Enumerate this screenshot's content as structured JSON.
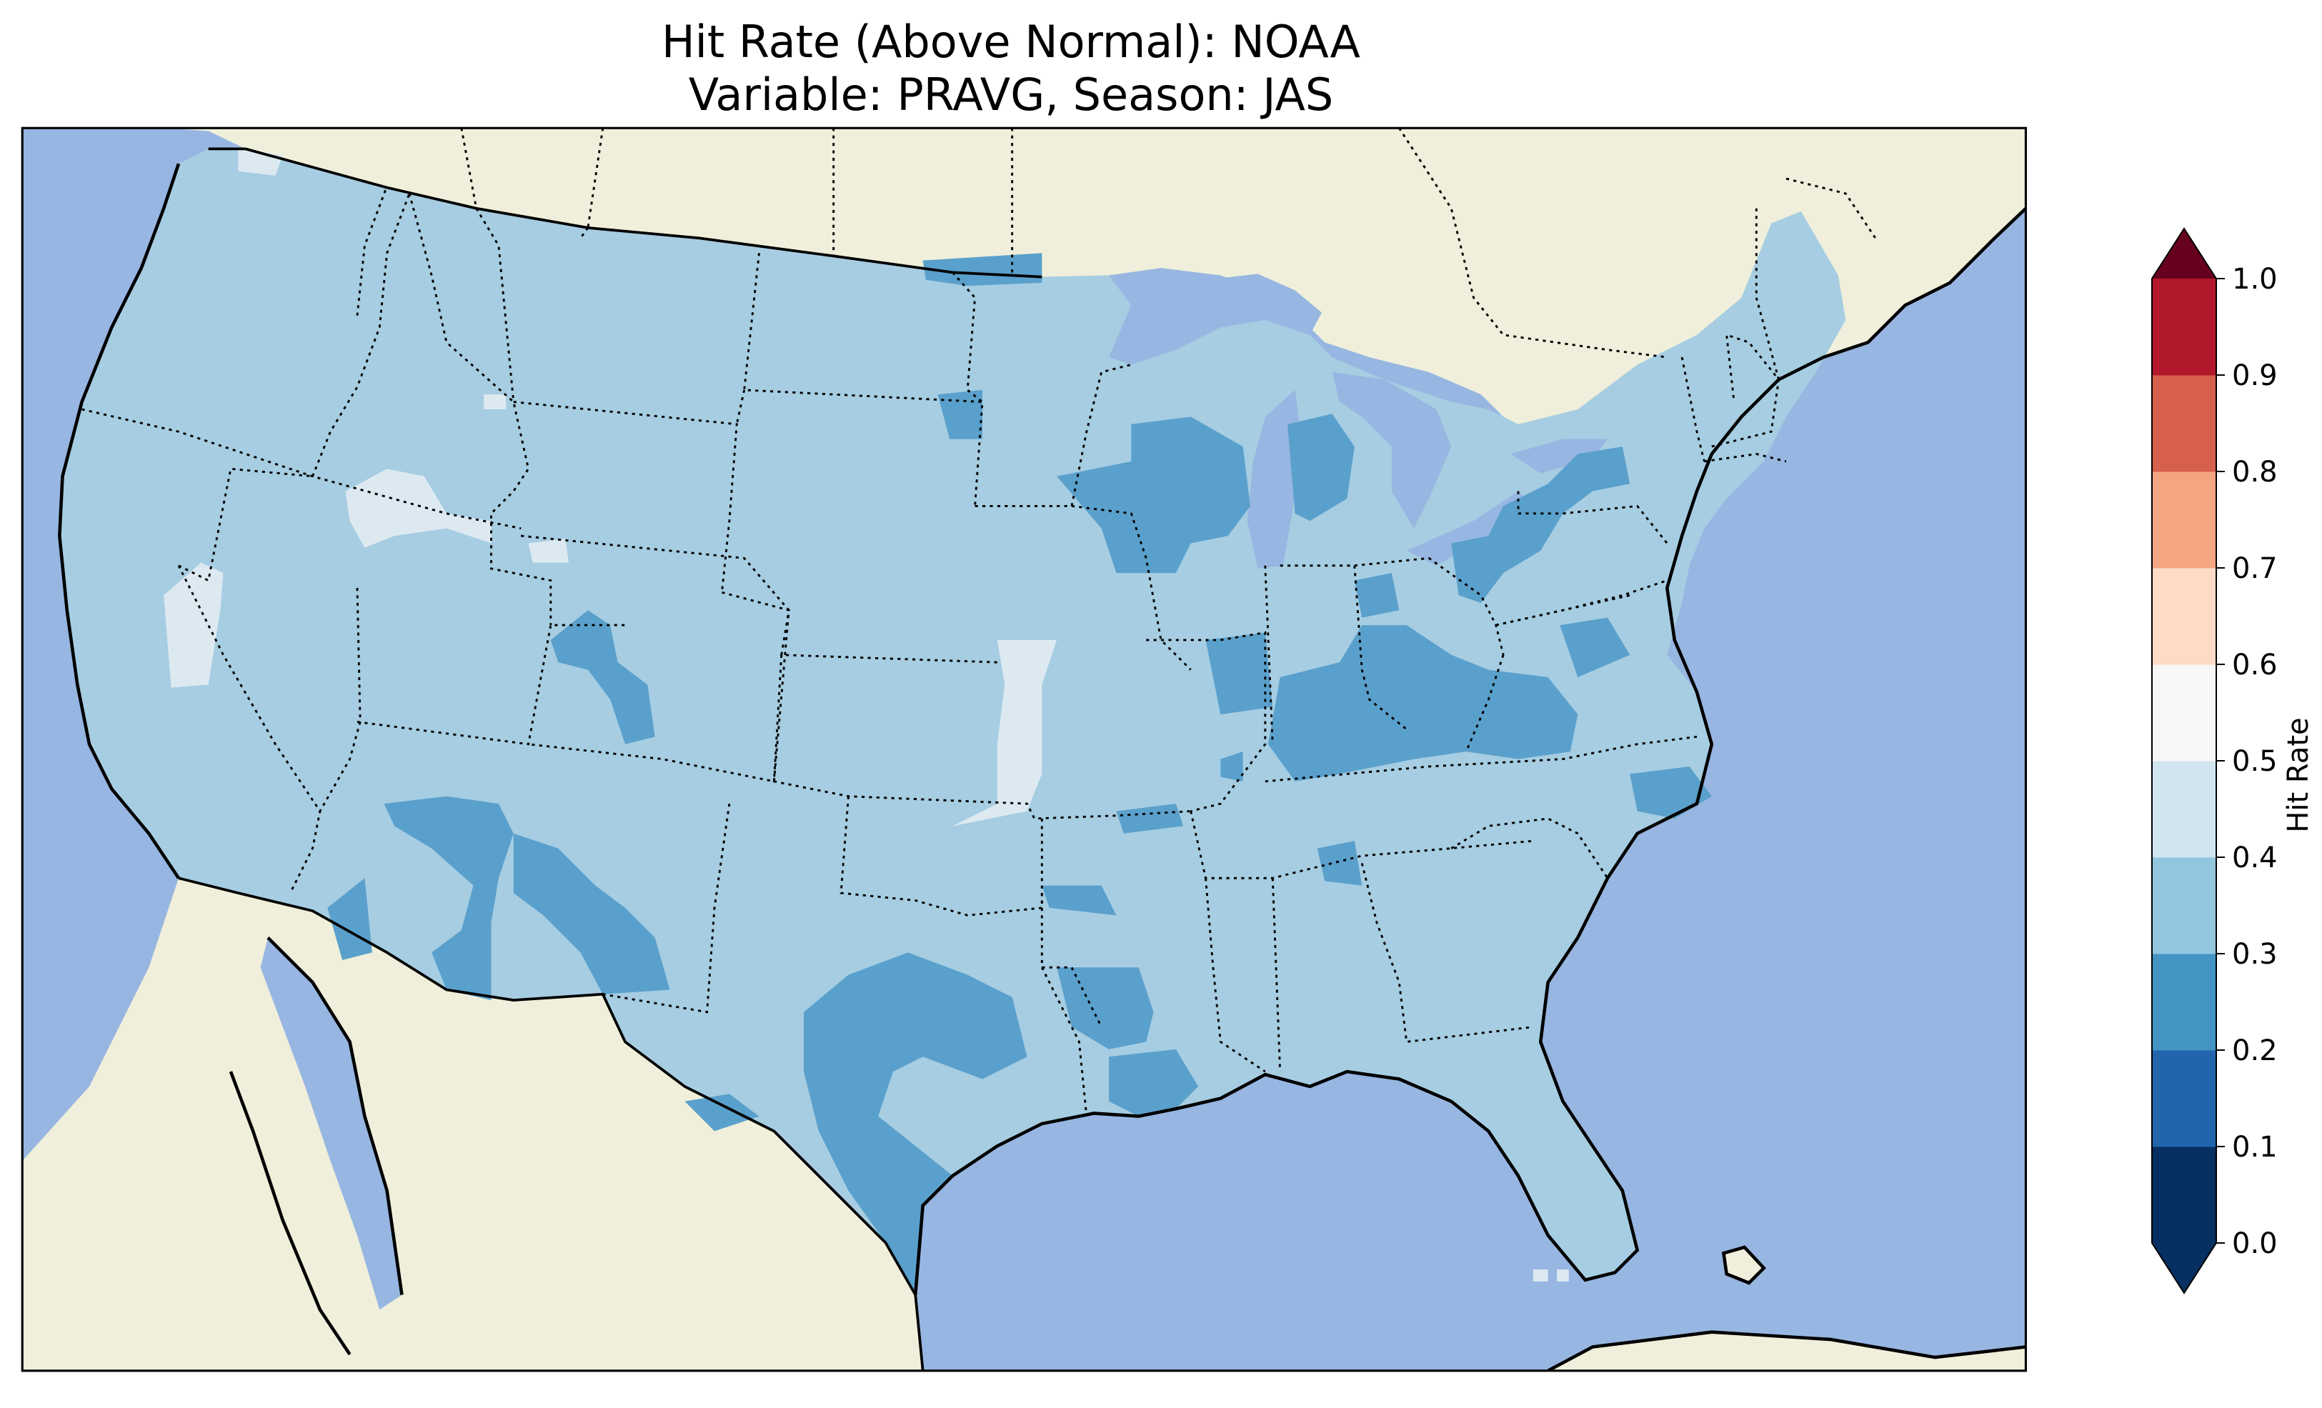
{
  "title": {
    "line1": "Hit Rate (Above Normal): NOAA",
    "line2": "Variable: PRAVG, Season: JAS"
  },
  "map": {
    "ocean_color": "#97b6e1",
    "land_color": "#efefdb",
    "region": "Contiguous United States",
    "field_name": "Hit Rate (Above Normal)",
    "predominant_class": "0.3–0.4",
    "lower_class_regions": [
      "Arizona",
      "Four Corners / New Mexico",
      "Central and South Texas",
      "Louisiana coast",
      "Upper Midwest (Wisconsin, Minnesota)",
      "Michigan",
      "Ohio Valley (Kentucky, Indiana, Ohio)",
      "Eastern North Carolina",
      "Colorado"
    ],
    "higher_class_regions": [
      "Southwest Oregon / Northern California coast",
      "Idaho / Oregon border",
      "Northern Nevada",
      "Kansas / Missouri border",
      "Southern Florida offshore"
    ]
  },
  "colorbar": {
    "label": "Hit Rate",
    "ticks": [
      "0.0",
      "0.1",
      "0.2",
      "0.3",
      "0.4",
      "0.5",
      "0.6",
      "0.7",
      "0.8",
      "0.9",
      "1.0"
    ],
    "bins": [
      {
        "range": [
          0.0,
          0.1
        ],
        "color": "#053061"
      },
      {
        "range": [
          0.1,
          0.2
        ],
        "color": "#2166ac"
      },
      {
        "range": [
          0.2,
          0.3
        ],
        "color": "#4393c3"
      },
      {
        "range": [
          0.3,
          0.4
        ],
        "color": "#92c5de"
      },
      {
        "range": [
          0.4,
          0.5
        ],
        "color": "#d1e5f0"
      },
      {
        "range": [
          0.5,
          0.6
        ],
        "color": "#f7f7f7"
      },
      {
        "range": [
          0.6,
          0.7
        ],
        "color": "#fddbc7"
      },
      {
        "range": [
          0.7,
          0.8
        ],
        "color": "#f4a582"
      },
      {
        "range": [
          0.8,
          0.9
        ],
        "color": "#d6604d"
      },
      {
        "range": [
          0.9,
          1.0
        ],
        "color": "#b2182b"
      }
    ],
    "under_color": "#053061",
    "over_color": "#67001f",
    "extend": "both"
  }
}
